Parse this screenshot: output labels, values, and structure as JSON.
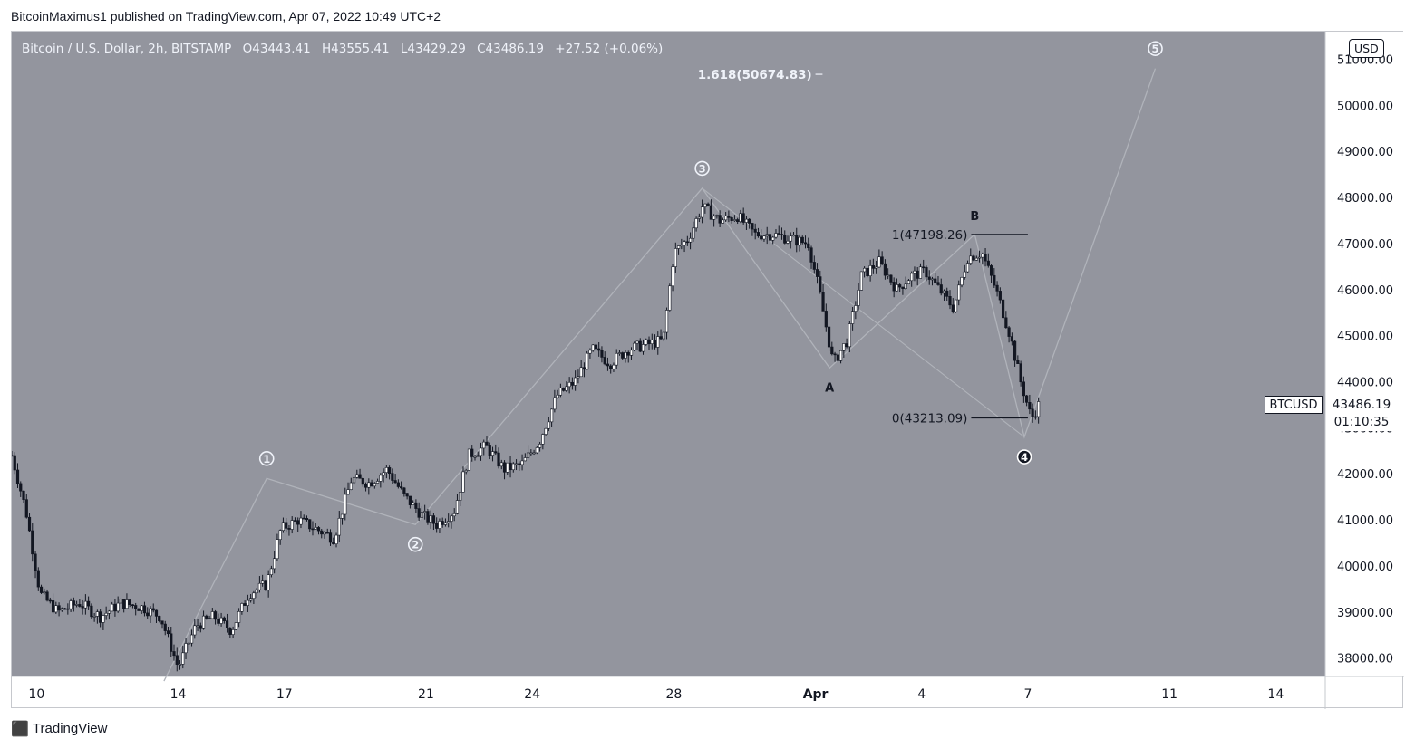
{
  "publisher_line": "BitcoinMaximus1 published on TradingView.com, Apr 07, 2022 10:49 UTC+2",
  "footer": {
    "brand": "TradingView"
  },
  "legend": {
    "symbol": "Bitcoin / U.S. Dollar, 2h, BITSTAMP",
    "open_label": "O",
    "open": "43443.41",
    "high_label": "H",
    "high": "43555.41",
    "low_label": "L",
    "low": "43429.29",
    "close_label": "C",
    "close": "43486.19",
    "change": "+27.52 (+0.06%)"
  },
  "price_axis": {
    "currency_badge": "USD",
    "ticks": [
      "51000.00",
      "50000.00",
      "49000.00",
      "48000.00",
      "47000.00",
      "46000.00",
      "45000.00",
      "44000.00",
      "43000.00",
      "42000.00",
      "41000.00",
      "40000.00",
      "39000.00",
      "38000.00"
    ]
  },
  "last_price": {
    "symbol_tag": "BTCUSD",
    "price": "43486.19",
    "countdown": "01:10:35"
  },
  "colors": {
    "plot_bg": "#93959e",
    "candle": "#131722",
    "wave_line": "#b0b3ba",
    "label_light": "#f0f3fa",
    "label_dark": "#131722"
  },
  "chart_data": {
    "type": "candlestick",
    "interval": "2h",
    "x_tick_labels": [
      "10",
      "14",
      "17",
      "21",
      "24",
      "28",
      "Apr",
      "4",
      "7",
      "11",
      "14"
    ],
    "x_tick_days": [
      10,
      14,
      17,
      21,
      24,
      28,
      32,
      35,
      38,
      42,
      45
    ],
    "ylim": [
      37600,
      51600
    ],
    "y_tick_step": 1000,
    "close_path": [
      {
        "day": 9.3,
        "price": 42400
      },
      {
        "day": 9.7,
        "price": 41200
      },
      {
        "day": 10.1,
        "price": 39400
      },
      {
        "day": 10.6,
        "price": 39000
      },
      {
        "day": 11.2,
        "price": 39200
      },
      {
        "day": 11.8,
        "price": 38900
      },
      {
        "day": 12.4,
        "price": 39200
      },
      {
        "day": 13.0,
        "price": 39100
      },
      {
        "day": 13.5,
        "price": 38900
      },
      {
        "day": 14.0,
        "price": 37800
      },
      {
        "day": 14.5,
        "price": 38700
      },
      {
        "day": 15.0,
        "price": 38900
      },
      {
        "day": 15.5,
        "price": 38600
      },
      {
        "day": 16.0,
        "price": 39400
      },
      {
        "day": 16.5,
        "price": 39600
      },
      {
        "day": 16.9,
        "price": 40800
      },
      {
        "day": 17.4,
        "price": 41000
      },
      {
        "day": 17.9,
        "price": 40800
      },
      {
        "day": 18.4,
        "price": 40600
      },
      {
        "day": 18.9,
        "price": 41900
      },
      {
        "day": 19.4,
        "price": 41800
      },
      {
        "day": 19.9,
        "price": 42100
      },
      {
        "day": 20.4,
        "price": 41500
      },
      {
        "day": 20.9,
        "price": 41100
      },
      {
        "day": 21.3,
        "price": 40900
      },
      {
        "day": 21.8,
        "price": 41200
      },
      {
        "day": 22.2,
        "price": 42400
      },
      {
        "day": 22.7,
        "price": 42600
      },
      {
        "day": 23.2,
        "price": 42100
      },
      {
        "day": 23.7,
        "price": 42200
      },
      {
        "day": 24.2,
        "price": 42700
      },
      {
        "day": 24.7,
        "price": 43700
      },
      {
        "day": 25.2,
        "price": 44000
      },
      {
        "day": 25.7,
        "price": 44700
      },
      {
        "day": 26.2,
        "price": 44400
      },
      {
        "day": 26.7,
        "price": 44700
      },
      {
        "day": 27.2,
        "price": 44800
      },
      {
        "day": 27.7,
        "price": 44900
      },
      {
        "day": 28.0,
        "price": 46800
      },
      {
        "day": 28.4,
        "price": 47100
      },
      {
        "day": 28.8,
        "price": 47800
      },
      {
        "day": 29.3,
        "price": 47500
      },
      {
        "day": 29.8,
        "price": 47600
      },
      {
        "day": 30.3,
        "price": 47200
      },
      {
        "day": 30.8,
        "price": 47200
      },
      {
        "day": 31.3,
        "price": 47100
      },
      {
        "day": 31.8,
        "price": 47000
      },
      {
        "day": 32.1,
        "price": 46000
      },
      {
        "day": 32.5,
        "price": 44400
      },
      {
        "day": 32.9,
        "price": 44900
      },
      {
        "day": 33.3,
        "price": 46300
      },
      {
        "day": 33.8,
        "price": 46600
      },
      {
        "day": 34.3,
        "price": 46000
      },
      {
        "day": 34.7,
        "price": 46300
      },
      {
        "day": 35.1,
        "price": 46400
      },
      {
        "day": 35.5,
        "price": 46000
      },
      {
        "day": 35.9,
        "price": 45600
      },
      {
        "day": 36.3,
        "price": 46700
      },
      {
        "day": 36.7,
        "price": 46800
      },
      {
        "day": 37.1,
        "price": 46000
      },
      {
        "day": 37.5,
        "price": 45000
      },
      {
        "day": 37.8,
        "price": 44000
      },
      {
        "day": 38.1,
        "price": 43200
      },
      {
        "day": 38.3,
        "price": 43490
      }
    ],
    "wave_points": [
      {
        "label": "1",
        "day": 16.5,
        "price": 41900
      },
      {
        "label": "2",
        "day": 20.7,
        "price": 40900
      },
      {
        "label": "3",
        "day": 28.8,
        "price": 48200
      },
      {
        "label": "A",
        "day": 32.4,
        "price": 44300
      },
      {
        "label": "B",
        "day": 36.5,
        "price": 47200
      },
      {
        "label": "4",
        "day": 37.9,
        "price": 42800
      },
      {
        "label": "5",
        "day": 41.6,
        "price": 50800
      }
    ],
    "wave_start": {
      "day": 13.6,
      "price": 37500
    },
    "fib_levels": [
      {
        "label": "1(47198.26)",
        "price": 47198.26
      },
      {
        "label": "0(43213.09)",
        "price": 43213.09
      },
      {
        "label": "1.618(50674.83)",
        "price": 50674.83
      }
    ]
  }
}
